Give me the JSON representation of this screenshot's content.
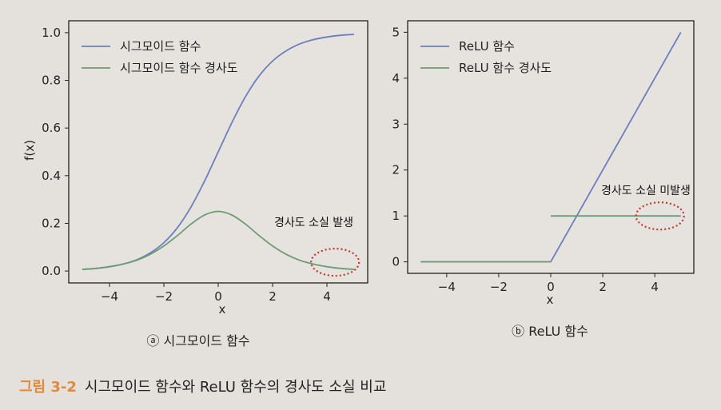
{
  "caption": {
    "figure_number": "그림 3-2",
    "text": "시그모이드 함수와 ReLU 함수의 경사도 소실 비교"
  },
  "chart_data": [
    {
      "type": "line",
      "subtitle": "ⓐ 시그모이드 함수",
      "xlabel": "x",
      "ylabel": "f(x)",
      "xlim": [
        -5.5,
        5.5
      ],
      "ylim": [
        -0.05,
        1.05
      ],
      "xticks": [
        -4,
        -2,
        0,
        2,
        4
      ],
      "xtick_labels": [
        "−4",
        "−2",
        "0",
        "2",
        "4"
      ],
      "yticks": [
        0.0,
        0.2,
        0.4,
        0.6,
        0.8,
        1.0
      ],
      "ytick_labels": [
        "0.0",
        "0.2",
        "0.4",
        "0.6",
        "0.8",
        "1.0"
      ],
      "grid": false,
      "legend_position": "top-left",
      "series": [
        {
          "name": "시그모이드 함수",
          "color": "#6b7fbd",
          "x": [
            -5,
            -4.5,
            -4,
            -3.5,
            -3,
            -2.5,
            -2,
            -1.5,
            -1,
            -0.5,
            0,
            0.5,
            1,
            1.5,
            2,
            2.5,
            3,
            3.5,
            4,
            4.5,
            5
          ],
          "y": [
            0.007,
            0.011,
            0.018,
            0.029,
            0.047,
            0.076,
            0.119,
            0.182,
            0.269,
            0.378,
            0.5,
            0.622,
            0.731,
            0.818,
            0.881,
            0.924,
            0.953,
            0.971,
            0.982,
            0.989,
            0.993
          ]
        },
        {
          "name": "시그모이드 함수 경사도",
          "color": "#6e9c76",
          "x": [
            -5,
            -4.5,
            -4,
            -3.5,
            -3,
            -2.5,
            -2,
            -1.5,
            -1,
            -0.5,
            0,
            0.5,
            1,
            1.5,
            2,
            2.5,
            3,
            3.5,
            4,
            4.5,
            5
          ],
          "y": [
            0.007,
            0.011,
            0.018,
            0.029,
            0.045,
            0.07,
            0.105,
            0.149,
            0.197,
            0.235,
            0.25,
            0.235,
            0.197,
            0.149,
            0.105,
            0.07,
            0.045,
            0.029,
            0.018,
            0.011,
            0.007
          ]
        }
      ],
      "annotation": {
        "text": "경사도 소실 발생",
        "circle_center": [
          4.3,
          0.01
        ],
        "circle_color": "#c0392b"
      }
    },
    {
      "type": "line",
      "subtitle": "ⓑ ReLU 함수",
      "xlabel": "x",
      "ylabel": "",
      "xlim": [
        -5.5,
        5.5
      ],
      "ylim": [
        -0.25,
        5.25
      ],
      "xticks": [
        -4,
        -2,
        0,
        2,
        4
      ],
      "xtick_labels": [
        "−4",
        "−2",
        "0",
        "2",
        "4"
      ],
      "yticks": [
        0,
        1,
        2,
        3,
        4,
        5
      ],
      "ytick_labels": [
        "0",
        "1",
        "2",
        "3",
        "4",
        "5"
      ],
      "grid": false,
      "legend_position": "top-left",
      "series": [
        {
          "name": "ReLU 함수",
          "color": "#6b7fbd",
          "x": [
            -5,
            0,
            5
          ],
          "y": [
            0,
            0,
            5
          ]
        },
        {
          "name": "ReLU 함수 경사도",
          "color": "#6e9c76",
          "segments": [
            {
              "x": [
                -5,
                0
              ],
              "y": [
                0,
                0
              ]
            },
            {
              "x": [
                0,
                5
              ],
              "y": [
                1,
                1
              ]
            }
          ]
        }
      ],
      "annotation": {
        "text": "경사도 소실 미발생",
        "circle_center": [
          4.2,
          1.0
        ],
        "circle_color": "#c0392b"
      }
    }
  ]
}
